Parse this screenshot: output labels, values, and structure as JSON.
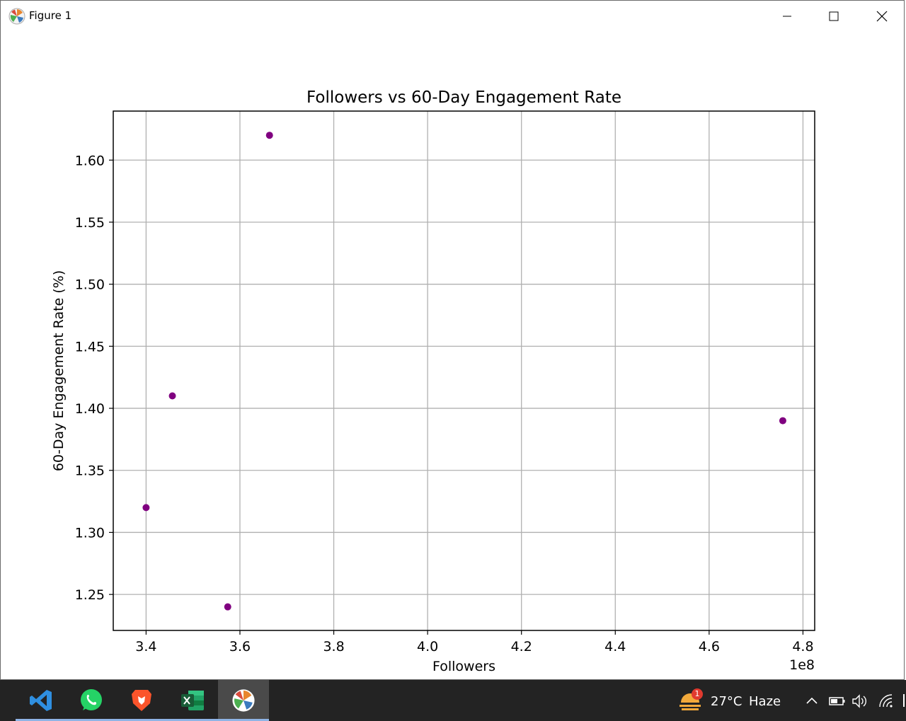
{
  "window": {
    "title": "Figure 1",
    "controls": {
      "minimize": "minimize",
      "maximize": "maximize",
      "close": "close"
    }
  },
  "chart_data": {
    "type": "scatter",
    "title": "Followers vs 60-Day Engagement Rate",
    "xlabel": "Followers",
    "ylabel": "60-Day Engagement Rate (%)",
    "x_offset_label": "1e8",
    "xlim": [
      3.33,
      4.825
    ],
    "ylim": [
      1.221,
      1.6395
    ],
    "xticks": [
      3.4,
      3.6,
      3.8,
      4.0,
      4.2,
      4.4,
      4.6,
      4.8
    ],
    "xtick_labels": [
      "3.4",
      "3.6",
      "3.8",
      "4.0",
      "4.2",
      "4.4",
      "4.6",
      "4.8"
    ],
    "yticks": [
      1.25,
      1.3,
      1.35,
      1.4,
      1.45,
      1.5,
      1.55,
      1.6
    ],
    "ytick_labels": [
      "1.25",
      "1.30",
      "1.35",
      "1.40",
      "1.45",
      "1.50",
      "1.55",
      "1.60"
    ],
    "grid": true,
    "marker_color": "#800080",
    "points": [
      {
        "x": 3.4,
        "y": 1.32
      },
      {
        "x": 3.456,
        "y": 1.41
      },
      {
        "x": 3.574,
        "y": 1.24
      },
      {
        "x": 3.663,
        "y": 1.62
      },
      {
        "x": 4.757,
        "y": 1.39
      }
    ]
  },
  "taskbar": {
    "apps": [
      {
        "name": "vscode-icon"
      },
      {
        "name": "whatsapp-icon"
      },
      {
        "name": "brave-icon"
      },
      {
        "name": "excel-icon"
      },
      {
        "name": "matplotlib-figure-icon"
      }
    ],
    "weather": {
      "badge": "1",
      "temp": "27°C",
      "condition": "Haze"
    }
  }
}
